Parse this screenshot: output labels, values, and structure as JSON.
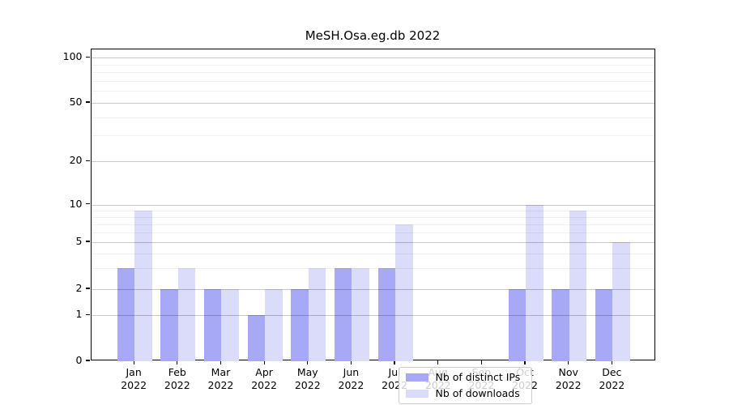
{
  "chart_data": {
    "type": "bar",
    "title": "MeSH.Osa.eg.db 2022",
    "categories": [
      "Jan",
      "Feb",
      "Mar",
      "Apr",
      "May",
      "Jun",
      "Jul",
      "Aug",
      "Sep",
      "Oct",
      "Nov",
      "Dec"
    ],
    "year_label": "2022",
    "series": [
      {
        "name": "Nb of distinct IPs",
        "color": "#a7a9f6",
        "values": [
          3,
          2,
          2,
          1,
          2,
          3,
          3,
          0,
          0,
          2,
          2,
          2
        ]
      },
      {
        "name": "Nb of downloads",
        "color": "#dadcfa",
        "values": [
          9,
          3,
          2,
          2,
          3,
          3,
          7,
          0,
          0,
          10,
          9,
          5
        ]
      }
    ],
    "y_axis": {
      "ticks": [
        0,
        1,
        2,
        5,
        10,
        20,
        50,
        100
      ],
      "minor_ticks": [
        3,
        4,
        6,
        7,
        8,
        9,
        30,
        40,
        60,
        70,
        80,
        90
      ],
      "scale": "log-like",
      "ylim": [
        0,
        100
      ]
    },
    "x_axis": {
      "tick_line1": [
        "Jan",
        "Feb",
        "Mar",
        "Apr",
        "May",
        "Jun",
        "Jul",
        "Aug",
        "Sep",
        "Oct",
        "Nov",
        "Dec"
      ],
      "tick_line2": "2022"
    },
    "legend": {
      "position": "lower-center",
      "labels": [
        "Nb of distinct IPs",
        "Nb of downloads"
      ]
    },
    "grid": "horizontal major + faint minor"
  }
}
